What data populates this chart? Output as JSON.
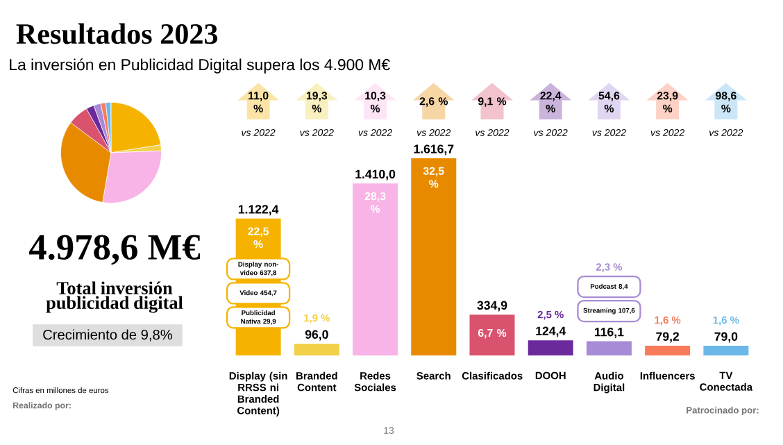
{
  "chart_data": [
    {
      "type": "pie",
      "title": "Resultados 2023",
      "subtitle": "La inversión en Publicidad Digital supera los 4.900 M€",
      "categories": [
        null,
        null,
        null,
        null,
        null,
        null,
        null,
        null,
        null
      ],
      "values": [
        22.5,
        1.9,
        28.3,
        32.5,
        6.7,
        2.5,
        2.3,
        1.6,
        1.6
      ],
      "colors": [
        "#f5b300",
        "#f2d047",
        "#f8b4e6",
        "#e88a00",
        "#d9536e",
        "#6a2a9b",
        "#a78bd6",
        "#f97b5a",
        "#6bb8e8"
      ],
      "annotations": [
        "4.978,6 M€",
        "Total inversión publicidad digital",
        "Crecimiento de 9,8%",
        "Cifras en millones de euros",
        "Realizado por:",
        "Patrocinado por:",
        "13"
      ]
    },
    {
      "type": "bar",
      "categories": [
        "Display (sin RRSS ni Branded Content)",
        "Branded Content",
        "Redes Sociales",
        "Search",
        "Clasificados",
        "DOOH",
        "Audio Digital",
        "Influencers",
        "TV Conectada"
      ],
      "values": [
        1122.4,
        96.0,
        1410.0,
        1616.7,
        334.9,
        124.4,
        116.1,
        79.2,
        79.0
      ],
      "value_labels": [
        "1.122,4",
        "96,0",
        "1.410,0",
        "1.616,7",
        "334,9",
        "124,4",
        "116,1",
        "79,2",
        "79,0"
      ],
      "colors": [
        "#f5b300",
        "#f2d047",
        "#f8b4e6",
        "#e88a00",
        "#d9536e",
        "#6a2a9b",
        "#a78bd6",
        "#f97b5a",
        "#6bb8e8"
      ],
      "annotations": [
        "22,5 %",
        "1,9 %",
        "28,3 %",
        "32,5 %",
        "6,7 %",
        "2,5 %",
        "2,3 %",
        "1,6 %",
        "1,6 %",
        "11,0 %",
        "19,3 %",
        "10,3 %",
        "2,6 %",
        "9,1 %",
        "22,4 %",
        "54,6 %",
        "23,9 %",
        "98,6 %",
        "vs 2022",
        "vs 2022",
        "vs 2022",
        "vs 2022",
        "vs 2022",
        "vs 2022",
        "vs 2022",
        "vs 2022",
        "vs 2022",
        "Display non-video 637,8",
        "Video 454,7",
        "Publicidad Nativa 29,9",
        "Podcast 8,4",
        "Streaming 107,6"
      ]
    }
  ]
}
